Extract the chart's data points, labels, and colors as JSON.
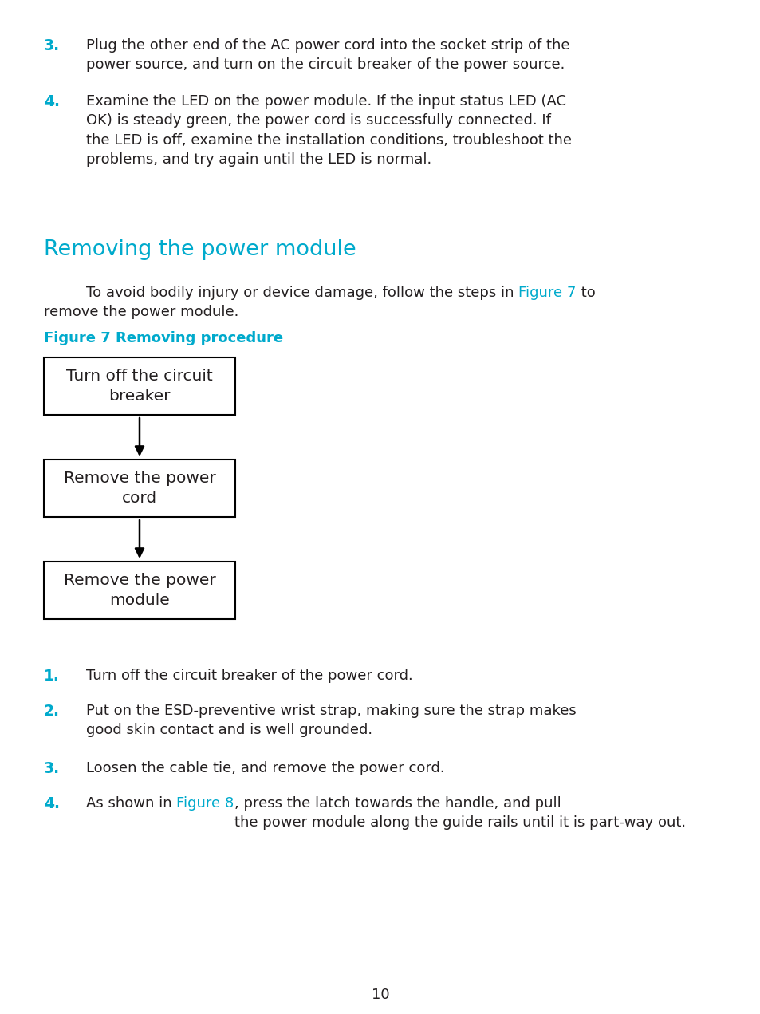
{
  "background_color": "#ffffff",
  "cyan_color": "#00aacc",
  "text_color": "#231f20",
  "page_number": "10",
  "section_title": "Removing the power module",
  "figure_caption": "Figure 7 Removing procedure",
  "flowchart_boxes": [
    "Turn off the circuit\nbreaker",
    "Remove the power\ncord",
    "Remove the power\nmodule"
  ],
  "item3_text": "Plug the other end of the AC power cord into the socket strip of the\npower source, and turn on the circuit breaker of the power source.",
  "item4_text": "Examine the LED on the power module. If the input status LED (AC\nOK) is steady green, the power cord is successfully connected. If\nthe LED is off, examine the installation conditions, troubleshoot the\nproblems, and try again until the LED is normal.",
  "intro_before": "To avoid bodily injury or device damage, follow the steps in ",
  "intro_link": "Figure 7",
  "intro_after": " to",
  "intro_line2": "remove the power module.",
  "b_item1": "Turn off the circuit breaker of the power cord.",
  "b_item2": "Put on the ESD-preventive wrist strap, making sure the strap makes\ngood skin contact and is well grounded.",
  "b_item3": "Loosen the cable tie, and remove the power cord.",
  "b_item4_before": "As shown in ",
  "b_item4_link": "Figure 8",
  "b_item4_after": ", press the latch towards the handle, and pull\nthe power module along the guide rails until it is part-way out."
}
